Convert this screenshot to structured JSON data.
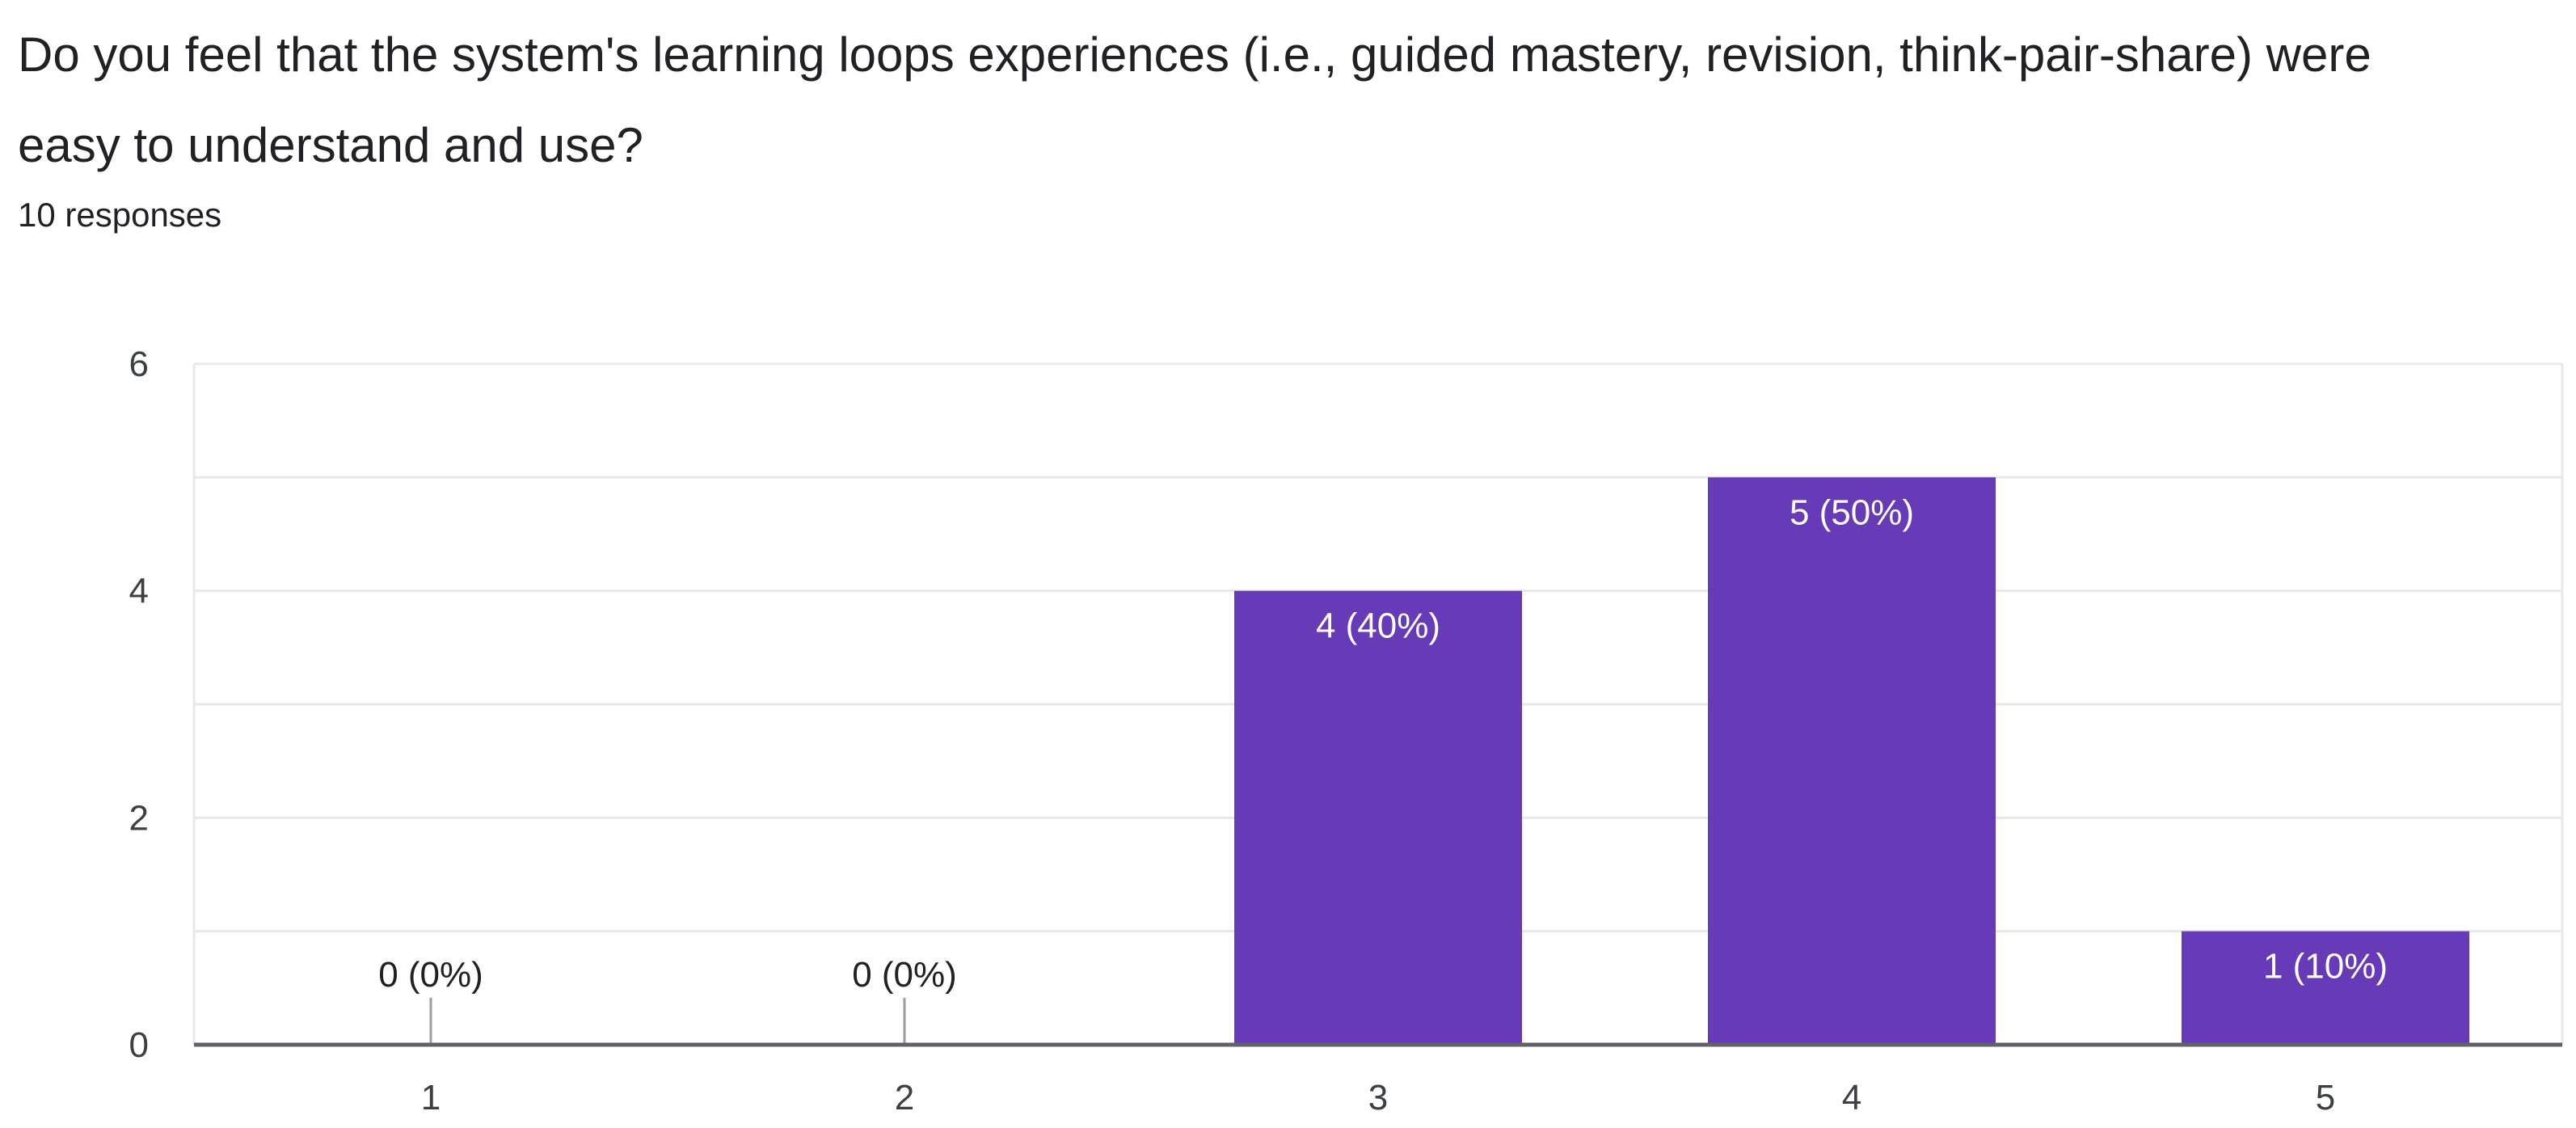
{
  "question": {
    "title": "Do you feel that the system's learning loops experiences (i.e., guided mastery, revision, think-pair-share) were easy to understand and use?",
    "response_count": "10 responses"
  },
  "colors": {
    "bar": "#673ab7",
    "grid": "#e8e8e8",
    "axis": "#5f6368",
    "text": "#202124",
    "tick_text": "#3c4043",
    "bar_label": "#ffffff"
  },
  "chart_data": {
    "type": "bar",
    "categories": [
      "1",
      "2",
      "3",
      "4",
      "5"
    ],
    "values": [
      0,
      0,
      4,
      5,
      1
    ],
    "labels": [
      "0 (0%)",
      "0 (0%)",
      "4 (40%)",
      "5 (50%)",
      "1 (10%)"
    ],
    "ylim": [
      0,
      6
    ],
    "yticks": [
      0,
      2,
      4,
      6
    ],
    "grid": true,
    "title": "",
    "xlabel": "",
    "ylabel": ""
  }
}
